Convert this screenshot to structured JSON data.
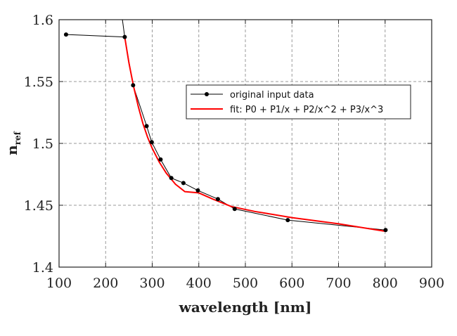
{
  "chart_data": {
    "type": "line",
    "title": "",
    "xlabel": "wavelength [nm]",
    "ylabel_main": "n",
    "ylabel_sub": "ref",
    "xlim": [
      100,
      900
    ],
    "ylim": [
      1.4,
      1.6
    ],
    "xticks": [
      "100",
      "200",
      "300",
      "400",
      "500",
      "600",
      "700",
      "800",
      "900"
    ],
    "yticks": [
      "1.4",
      "1.45",
      "1.5",
      "1.55",
      "1.6"
    ],
    "grid": true,
    "legend_position": "upper-right",
    "series": [
      {
        "name": "original input data",
        "color": "#000000",
        "style": "line-with-markers",
        "x": [
          115,
          241,
          259,
          288,
          299,
          318,
          341,
          367,
          398,
          441,
          477,
          591,
          801
        ],
        "y": [
          1.588,
          1.586,
          1.547,
          1.514,
          1.501,
          1.487,
          1.472,
          1.468,
          1.462,
          1.455,
          1.447,
          1.438,
          1.43
        ]
      },
      {
        "name": "fit: P0 + P1/x + P2/x^2 + P3/x^3",
        "color": "#ff0000",
        "style": "line",
        "x": [
          241,
          250,
          260,
          270,
          280,
          290,
          300,
          315,
          330,
          350,
          370,
          400,
          430,
          470,
          520,
          600,
          700,
          800
        ],
        "y": [
          1.586,
          1.565,
          1.546,
          1.53,
          1.516,
          1.505,
          1.496,
          1.485,
          1.476,
          1.467,
          1.461,
          1.46,
          1.455,
          1.449,
          1.445,
          1.44,
          1.435,
          1.429
        ]
      }
    ]
  }
}
